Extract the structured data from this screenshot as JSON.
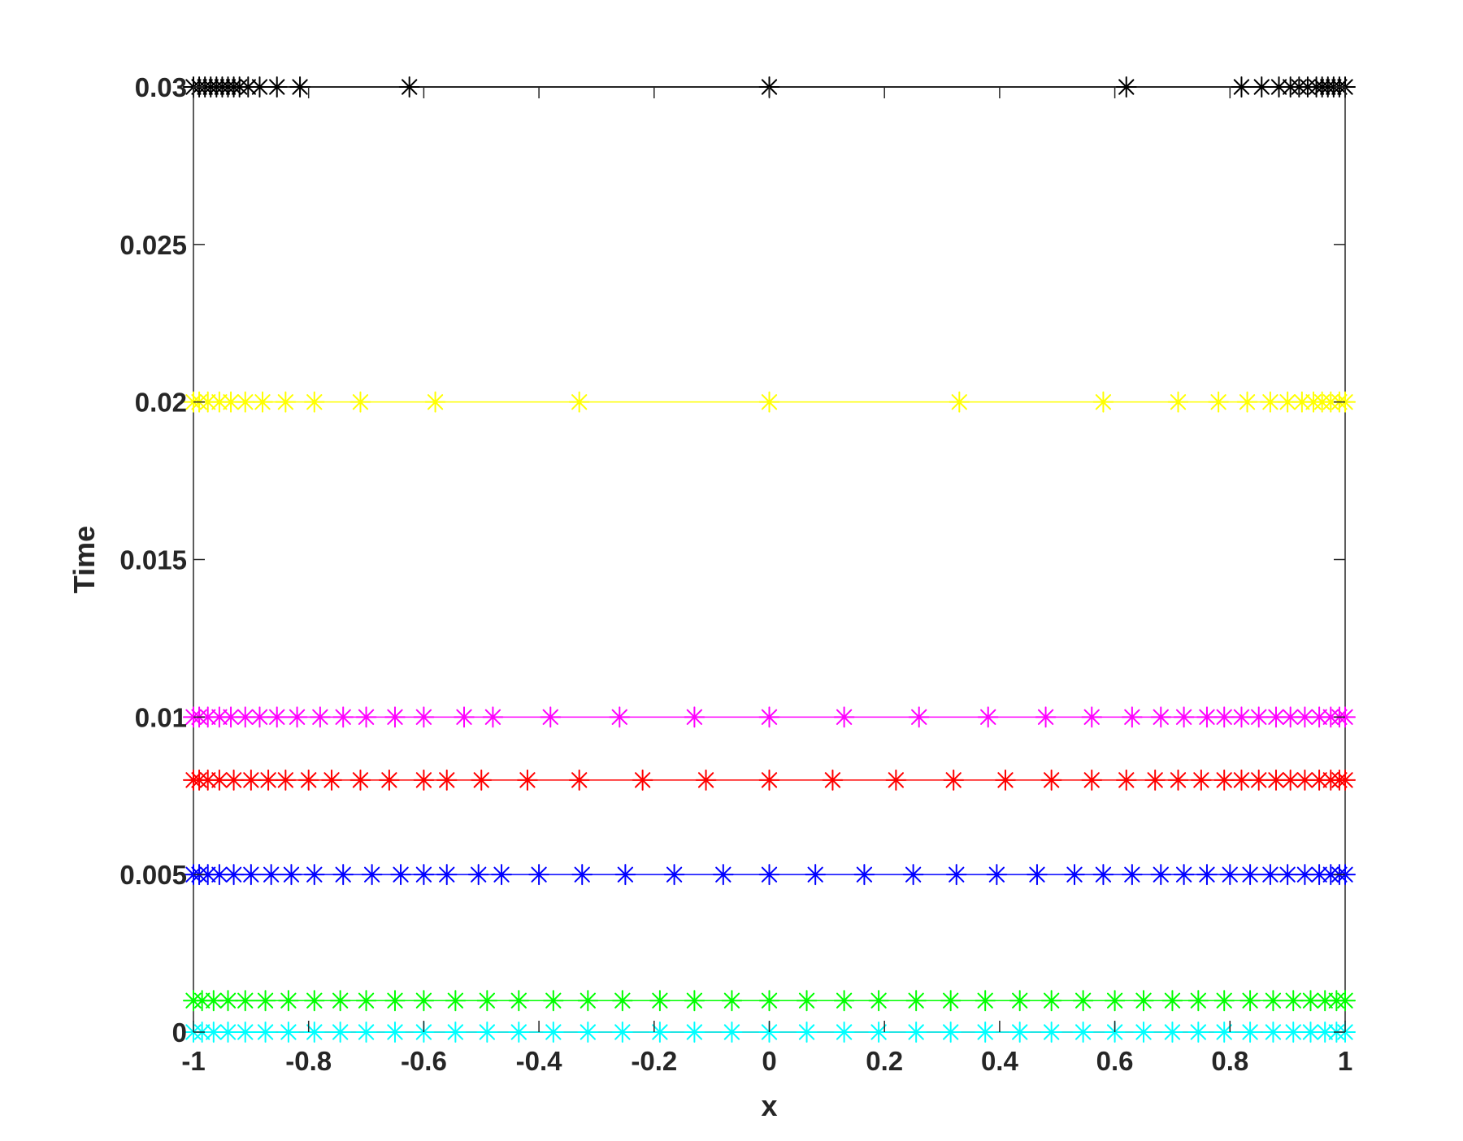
{
  "chart_data": {
    "type": "scatter",
    "title": "",
    "xlabel": "x",
    "ylabel": "Time",
    "xlim": [
      -1,
      1
    ],
    "ylim": [
      0,
      0.03
    ],
    "grid": false,
    "legend": "none",
    "xticks": [
      -1,
      -0.8,
      -0.6,
      -0.4,
      -0.2,
      0,
      0.2,
      0.4,
      0.6,
      0.8,
      1
    ],
    "xtick_labels": [
      "-1",
      "-0.8",
      "-0.6",
      "-0.4",
      "-0.2",
      "0",
      "0.2",
      "0.4",
      "0.6",
      "0.8",
      "1"
    ],
    "yticks": [
      0,
      0.005,
      0.01,
      0.015,
      0.02,
      0.025,
      0.03
    ],
    "ytick_labels": [
      "0",
      "0.005",
      "0.01",
      "0.015",
      "0.02",
      "0.025",
      "0.03"
    ],
    "marker": "asterisk",
    "series": [
      {
        "time": 0,
        "color": "#00ffff",
        "x": [
          -1,
          -0.985,
          -0.965,
          -0.94,
          -0.91,
          -0.875,
          -0.835,
          -0.79,
          -0.745,
          -0.7,
          -0.65,
          -0.6,
          -0.545,
          -0.49,
          -0.435,
          -0.375,
          -0.315,
          -0.255,
          -0.19,
          -0.13,
          -0.065,
          0,
          0.065,
          0.13,
          0.19,
          0.255,
          0.315,
          0.375,
          0.435,
          0.49,
          0.545,
          0.6,
          0.65,
          0.7,
          0.745,
          0.79,
          0.835,
          0.875,
          0.91,
          0.94,
          0.965,
          0.985,
          1
        ]
      },
      {
        "time": 0.001,
        "color": "#00ff00",
        "x": [
          -1,
          -0.985,
          -0.965,
          -0.94,
          -0.91,
          -0.875,
          -0.835,
          -0.79,
          -0.745,
          -0.7,
          -0.65,
          -0.6,
          -0.545,
          -0.49,
          -0.435,
          -0.375,
          -0.315,
          -0.255,
          -0.19,
          -0.13,
          -0.065,
          0,
          0.065,
          0.13,
          0.19,
          0.255,
          0.315,
          0.375,
          0.435,
          0.49,
          0.545,
          0.6,
          0.65,
          0.7,
          0.745,
          0.79,
          0.835,
          0.875,
          0.91,
          0.94,
          0.965,
          0.985,
          1
        ]
      },
      {
        "time": 0.005,
        "color": "#0000ff",
        "x": [
          -1,
          -0.99,
          -0.975,
          -0.955,
          -0.93,
          -0.9,
          -0.865,
          -0.83,
          -0.79,
          -0.74,
          -0.69,
          -0.64,
          -0.6,
          -0.56,
          -0.505,
          -0.465,
          -0.4,
          -0.325,
          -0.25,
          -0.165,
          -0.08,
          0,
          0.08,
          0.165,
          0.25,
          0.325,
          0.395,
          0.465,
          0.53,
          0.58,
          0.63,
          0.68,
          0.72,
          0.76,
          0.8,
          0.835,
          0.87,
          0.9,
          0.93,
          0.955,
          0.975,
          0.99,
          1
        ]
      },
      {
        "time": 0.008,
        "color": "#ff0000",
        "x": [
          -1,
          -0.99,
          -0.975,
          -0.955,
          -0.93,
          -0.9,
          -0.87,
          -0.84,
          -0.8,
          -0.76,
          -0.71,
          -0.66,
          -0.6,
          -0.56,
          -0.5,
          -0.42,
          -0.33,
          -0.22,
          -0.11,
          0,
          0.11,
          0.22,
          0.32,
          0.41,
          0.49,
          0.56,
          0.62,
          0.67,
          0.71,
          0.75,
          0.79,
          0.82,
          0.85,
          0.88,
          0.905,
          0.93,
          0.955,
          0.975,
          0.99,
          1
        ]
      },
      {
        "time": 0.01,
        "color": "#ff00ff",
        "x": [
          -1,
          -0.99,
          -0.975,
          -0.955,
          -0.935,
          -0.91,
          -0.885,
          -0.855,
          -0.82,
          -0.78,
          -0.74,
          -0.7,
          -0.65,
          -0.6,
          -0.53,
          -0.48,
          -0.38,
          -0.26,
          -0.13,
          0,
          0.13,
          0.26,
          0.38,
          0.48,
          0.56,
          0.63,
          0.68,
          0.72,
          0.76,
          0.79,
          0.82,
          0.85,
          0.88,
          0.905,
          0.93,
          0.955,
          0.975,
          0.99,
          1
        ]
      },
      {
        "time": 0.02,
        "color": "#ffff00",
        "x": [
          -1,
          -0.99,
          -0.975,
          -0.955,
          -0.935,
          -0.91,
          -0.88,
          -0.84,
          -0.79,
          -0.71,
          -0.58,
          -0.33,
          0,
          0.33,
          0.58,
          0.71,
          0.78,
          0.83,
          0.87,
          0.9,
          0.925,
          0.945,
          0.96,
          0.975,
          0.99,
          1
        ]
      },
      {
        "time": 0.03,
        "color": "#000000",
        "x": [
          -1,
          -0.99,
          -0.98,
          -0.97,
          -0.96,
          -0.95,
          -0.94,
          -0.93,
          -0.92,
          -0.905,
          -0.885,
          -0.855,
          -0.815,
          -0.625,
          0,
          0.62,
          0.82,
          0.855,
          0.885,
          0.905,
          0.92,
          0.935,
          0.95,
          0.96,
          0.97,
          0.98,
          0.99,
          1
        ]
      }
    ]
  }
}
